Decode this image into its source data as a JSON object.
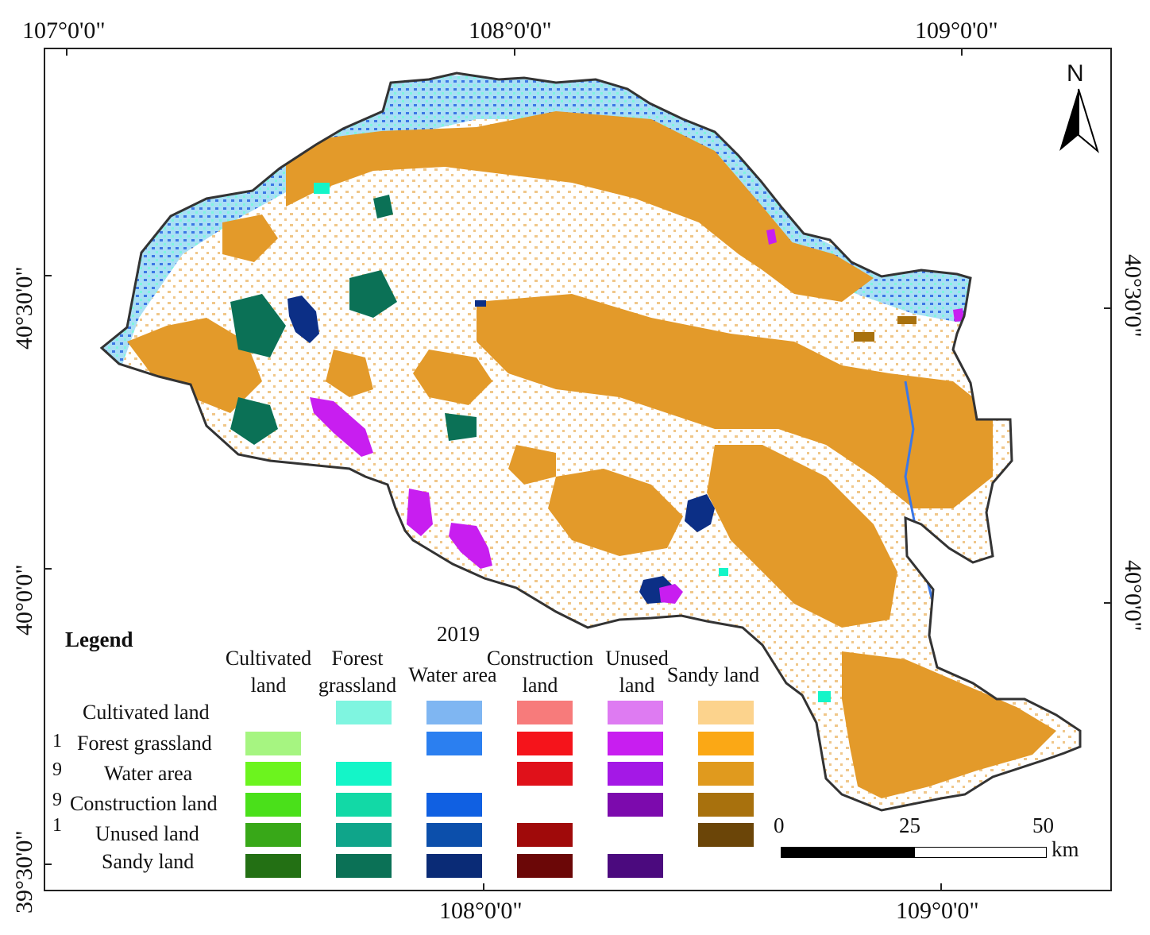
{
  "coords": {
    "top": [
      "107°0'0\"",
      "108°0'0\"",
      "109°0'0\""
    ],
    "bottom": [
      "108°0'0\"",
      "109°0'0\""
    ],
    "left": [
      "40°30'0\"",
      "40°0'0\"",
      "39°30'0\""
    ],
    "right": [
      "40°30'0\"",
      "40°0'0\""
    ]
  },
  "north": {
    "label": "N"
  },
  "legend": {
    "title": "Legend",
    "year": "2019",
    "row_prefixes": [
      "1",
      "9",
      "9",
      "1"
    ],
    "columns": [
      {
        "line1": "Cultivated",
        "line2": "land"
      },
      {
        "line1": "Forest",
        "line2": "grassland"
      },
      {
        "line1": "Water area",
        "line2": ""
      },
      {
        "line1": "Construction",
        "line2": "land"
      },
      {
        "line1": "Unused",
        "line2": "land"
      },
      {
        "line1": "Sandy land",
        "line2": ""
      }
    ],
    "rows": [
      {
        "label": "Cultivated land",
        "colors": [
          "",
          "#7ff5e0",
          "#7fb6f2",
          "#f77b7b",
          "#de7bf2",
          "#fcd38d"
        ]
      },
      {
        "label": "Forest grassland",
        "colors": [
          "#a6f581",
          "",
          "#2b7ff0",
          "#f5141b",
          "#c81ef0",
          "#fba815"
        ]
      },
      {
        "label": "Water area",
        "colors": [
          "#6cf41e",
          "#14f5c8",
          "",
          "#e0111a",
          "#a418e6",
          "#e09a1e"
        ]
      },
      {
        "label": "Construction land",
        "colors": [
          "#4ae01a",
          "#12d9a6",
          "#1060e2",
          "",
          "#7c0aad",
          "#a8710d"
        ]
      },
      {
        "label": "Unused land",
        "colors": [
          "#38a818",
          "#0fa58a",
          "#0c4fab",
          "#a00a0a",
          "",
          "#6b4508"
        ]
      },
      {
        "label": "Sandy land",
        "colors": [
          "#237014",
          "#0b7156",
          "#0a2b76",
          "#6b0707",
          "#4b0a7e",
          ""
        ]
      }
    ]
  },
  "scale": {
    "labels": [
      "0",
      "25",
      "50"
    ],
    "unit": "km"
  },
  "map_colors": {
    "sandy": "#e39a2a",
    "cultivated_blue": "#3c78e6",
    "forest_cyan": "#7ff5e0",
    "water_navy": "#0c2f86",
    "forest_dark": "#0b7156",
    "unused_purple": "#c81ef0",
    "outline": "#333333"
  }
}
